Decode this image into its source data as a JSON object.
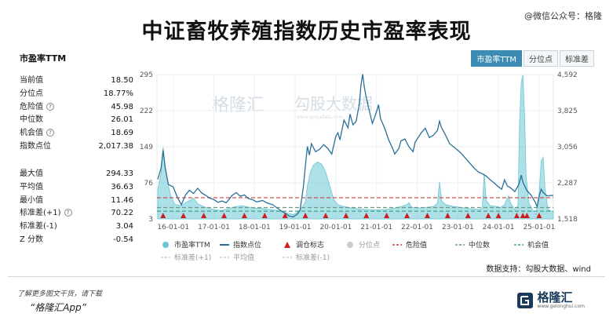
{
  "page": {
    "title": "中证畜牧养殖指数历史市盈率表现",
    "watermark_top": "@微信公众号：格隆",
    "chart_heading": "市盈率TTM",
    "tabs": [
      "市盈率TTM",
      "分位点",
      "标准差"
    ],
    "watermark_center": "勾股大数据",
    "watermark_center_sub": "www.gogudata.com",
    "watermark_brand": "格隆汇",
    "source_note": "数据支持：勾股大数据、wind",
    "footer_line1": "了解更多图文干货，请下载",
    "footer_line2": "“格隆汇App”",
    "footer_logo_text": "格隆汇",
    "footer_logo_sub": "www.gelonghui.com"
  },
  "stats_group1": [
    {
      "label": "当前值",
      "value": "18.50",
      "help": false
    },
    {
      "label": "分位点",
      "value": "18.77%",
      "help": false
    },
    {
      "label": "危险值",
      "value": "45.98",
      "help": true
    },
    {
      "label": "中位数",
      "value": "26.01",
      "help": false
    },
    {
      "label": "机会值",
      "value": "18.69",
      "help": true
    },
    {
      "label": "指数点位",
      "value": "2,017.38",
      "help": false
    }
  ],
  "stats_group2": [
    {
      "label": "最大值",
      "value": "294.33",
      "help": false
    },
    {
      "label": "平均值",
      "value": "36.63",
      "help": false
    },
    {
      "label": "最小值",
      "value": "11.46",
      "help": false
    },
    {
      "label": "标准差(+1)",
      "value": "70.22",
      "help": true
    },
    {
      "label": "标准差(-1)",
      "value": "3.04",
      "help": false
    },
    {
      "label": "Z 分数",
      "value": "-0.54",
      "help": false
    }
  ],
  "chart_data": {
    "type": "line",
    "x_ticks": [
      "16-01-01",
      "17-01-01",
      "18-01-01",
      "19-01-01",
      "20-01-01",
      "21-01-01",
      "22-01-01",
      "23-01-01",
      "24-01-01",
      "25-01-01"
    ],
    "x_range": [
      2015.6,
      2025.35
    ],
    "y_left": {
      "label": "市盈率TTM",
      "ticks": [
        "295",
        "222",
        "149",
        "76",
        "3"
      ],
      "range": [
        3,
        295
      ]
    },
    "y_right": {
      "label": "指数点位",
      "ticks": [
        "4,592",
        "3,825",
        "3,056",
        "2,287",
        "1,518"
      ],
      "range": [
        1518,
        4592
      ]
    },
    "reference_lines": [
      {
        "name": "危险值",
        "value": 45.98,
        "color": "#c94040"
      },
      {
        "name": "中位数",
        "value": 26.01,
        "color": "#6a9a84"
      },
      {
        "name": "机会值",
        "value": 18.69,
        "color": "#3aa58e"
      }
    ],
    "series": [
      {
        "name": "市盈率TTM",
        "kind": "area",
        "color": "#6cc6d6",
        "points": [
          [
            2015.62,
            62
          ],
          [
            2015.7,
            95
          ],
          [
            2015.75,
            148
          ],
          [
            2015.8,
            110
          ],
          [
            2015.88,
            70
          ],
          [
            2015.96,
            45
          ],
          [
            2016.05,
            32
          ],
          [
            2016.2,
            30
          ],
          [
            2016.35,
            38
          ],
          [
            2016.5,
            45
          ],
          [
            2016.6,
            34
          ],
          [
            2016.75,
            28
          ],
          [
            2016.9,
            24
          ],
          [
            2017.0,
            22
          ],
          [
            2017.2,
            20
          ],
          [
            2017.4,
            25
          ],
          [
            2017.55,
            28
          ],
          [
            2017.7,
            30
          ],
          [
            2017.85,
            27
          ],
          [
            2018.0,
            25
          ],
          [
            2018.2,
            24
          ],
          [
            2018.4,
            22
          ],
          [
            2018.55,
            20
          ],
          [
            2018.7,
            17
          ],
          [
            2018.85,
            14
          ],
          [
            2018.95,
            12
          ],
          [
            2019.05,
            16
          ],
          [
            2019.15,
            24
          ],
          [
            2019.25,
            38
          ],
          [
            2019.3,
            70
          ],
          [
            2019.38,
            100
          ],
          [
            2019.45,
            112
          ],
          [
            2019.55,
            118
          ],
          [
            2019.65,
            114
          ],
          [
            2019.75,
            98
          ],
          [
            2019.85,
            70
          ],
          [
            2019.95,
            42
          ],
          [
            2020.05,
            32
          ],
          [
            2020.2,
            28
          ],
          [
            2020.4,
            25
          ],
          [
            2020.6,
            23
          ],
          [
            2020.8,
            22
          ],
          [
            2021.0,
            21
          ],
          [
            2021.2,
            22
          ],
          [
            2021.4,
            24
          ],
          [
            2021.6,
            28
          ],
          [
            2021.75,
            32
          ],
          [
            2021.8,
            36
          ],
          [
            2021.85,
            28
          ],
          [
            2021.9,
            26
          ],
          [
            2022.0,
            25
          ],
          [
            2022.2,
            26
          ],
          [
            2022.4,
            28
          ],
          [
            2022.5,
            35
          ],
          [
            2022.55,
            78
          ],
          [
            2022.6,
            40
          ],
          [
            2022.7,
            32
          ],
          [
            2022.9,
            28
          ],
          [
            2023.1,
            26
          ],
          [
            2023.3,
            24
          ],
          [
            2023.5,
            22
          ],
          [
            2023.6,
            24
          ],
          [
            2023.65,
            95
          ],
          [
            2023.7,
            40
          ],
          [
            2023.8,
            30
          ],
          [
            2023.95,
            28
          ],
          [
            2024.05,
            26
          ],
          [
            2024.15,
            32
          ],
          [
            2024.2,
            42
          ],
          [
            2024.25,
            50
          ],
          [
            2024.3,
            35
          ],
          [
            2024.4,
            22
          ],
          [
            2024.48,
            30
          ],
          [
            2024.52,
            200
          ],
          [
            2024.56,
            280
          ],
          [
            2024.6,
            294
          ],
          [
            2024.64,
            220
          ],
          [
            2024.68,
            90
          ],
          [
            2024.75,
            35
          ],
          [
            2024.85,
            20
          ],
          [
            2024.92,
            12
          ],
          [
            2025.0,
            55
          ],
          [
            2025.05,
            120
          ],
          [
            2025.1,
            128
          ],
          [
            2025.15,
            60
          ],
          [
            2025.22,
            22
          ],
          [
            2025.3,
            19
          ],
          [
            2025.35,
            18.5
          ]
        ]
      },
      {
        "name": "指数点位",
        "kind": "line",
        "color": "#2a6f97",
        "points": [
          [
            2015.62,
            2360
          ],
          [
            2015.7,
            2600
          ],
          [
            2015.75,
            2980
          ],
          [
            2015.8,
            2620
          ],
          [
            2015.88,
            2250
          ],
          [
            2016.0,
            2200
          ],
          [
            2016.1,
            1980
          ],
          [
            2016.2,
            1820
          ],
          [
            2016.3,
            2030
          ],
          [
            2016.4,
            2130
          ],
          [
            2016.5,
            2060
          ],
          [
            2016.6,
            2170
          ],
          [
            2016.7,
            2070
          ],
          [
            2016.8,
            2020
          ],
          [
            2016.9,
            1960
          ],
          [
            2017.0,
            1930
          ],
          [
            2017.1,
            1870
          ],
          [
            2017.2,
            1900
          ],
          [
            2017.3,
            1860
          ],
          [
            2017.45,
            2020
          ],
          [
            2017.55,
            2080
          ],
          [
            2017.65,
            2000
          ],
          [
            2017.75,
            2030
          ],
          [
            2017.85,
            1950
          ],
          [
            2017.95,
            1930
          ],
          [
            2018.05,
            1880
          ],
          [
            2018.2,
            1910
          ],
          [
            2018.3,
            1860
          ],
          [
            2018.45,
            1820
          ],
          [
            2018.6,
            1720
          ],
          [
            2018.75,
            1640
          ],
          [
            2018.85,
            1580
          ],
          [
            2018.95,
            1560
          ],
          [
            2019.05,
            1620
          ],
          [
            2019.12,
            1700
          ],
          [
            2019.2,
            2200
          ],
          [
            2019.25,
            2650
          ],
          [
            2019.3,
            3060
          ],
          [
            2019.35,
            2880
          ],
          [
            2019.4,
            3120
          ],
          [
            2019.5,
            2950
          ],
          [
            2019.6,
            3000
          ],
          [
            2019.7,
            3100
          ],
          [
            2019.8,
            3020
          ],
          [
            2019.9,
            2900
          ],
          [
            2020.0,
            3280
          ],
          [
            2020.05,
            3350
          ],
          [
            2020.1,
            3200
          ],
          [
            2020.2,
            3620
          ],
          [
            2020.3,
            3460
          ],
          [
            2020.35,
            3750
          ],
          [
            2020.42,
            3520
          ],
          [
            2020.5,
            3600
          ],
          [
            2020.58,
            3980
          ],
          [
            2020.62,
            4380
          ],
          [
            2020.66,
            4600
          ],
          [
            2020.7,
            4320
          ],
          [
            2020.75,
            4100
          ],
          [
            2020.8,
            3900
          ],
          [
            2020.9,
            3550
          ],
          [
            2021.0,
            3800
          ],
          [
            2021.05,
            3950
          ],
          [
            2021.1,
            3650
          ],
          [
            2021.2,
            3450
          ],
          [
            2021.3,
            3200
          ],
          [
            2021.38,
            3050
          ],
          [
            2021.45,
            2900
          ],
          [
            2021.55,
            3020
          ],
          [
            2021.6,
            3180
          ],
          [
            2021.7,
            3220
          ],
          [
            2021.8,
            3050
          ],
          [
            2021.9,
            2950
          ],
          [
            2021.95,
            3150
          ],
          [
            2022.0,
            3220
          ],
          [
            2022.1,
            3350
          ],
          [
            2022.2,
            3450
          ],
          [
            2022.3,
            3250
          ],
          [
            2022.4,
            3300
          ],
          [
            2022.5,
            3400
          ],
          [
            2022.55,
            3600
          ],
          [
            2022.6,
            3460
          ],
          [
            2022.7,
            3300
          ],
          [
            2022.8,
            3120
          ],
          [
            2022.9,
            3050
          ],
          [
            2023.0,
            2980
          ],
          [
            2023.1,
            2900
          ],
          [
            2023.2,
            2800
          ],
          [
            2023.3,
            2700
          ],
          [
            2023.4,
            2600
          ],
          [
            2023.5,
            2520
          ],
          [
            2023.6,
            2480
          ],
          [
            2023.7,
            2430
          ],
          [
            2023.8,
            2350
          ],
          [
            2023.9,
            2280
          ],
          [
            2024.0,
            2200
          ],
          [
            2024.08,
            2150
          ],
          [
            2024.15,
            2350
          ],
          [
            2024.22,
            2220
          ],
          [
            2024.3,
            2180
          ],
          [
            2024.4,
            2100
          ],
          [
            2024.5,
            2250
          ],
          [
            2024.56,
            2450
          ],
          [
            2024.6,
            2300
          ],
          [
            2024.7,
            2120
          ],
          [
            2024.8,
            2030
          ],
          [
            2024.9,
            1880
          ],
          [
            2024.95,
            1780
          ],
          [
            2025.0,
            2000
          ],
          [
            2025.05,
            2150
          ],
          [
            2025.1,
            2080
          ],
          [
            2025.2,
            2010
          ],
          [
            2025.3,
            2020
          ],
          [
            2025.35,
            2017.38
          ]
        ]
      }
    ],
    "markers": {
      "name": "调仓标志",
      "color": "#cc1f1f",
      "x": [
        2015.75,
        2016.25,
        2016.75,
        2017.25,
        2017.75,
        2018.25,
        2018.75,
        2019.25,
        2019.75,
        2020.25,
        2020.75,
        2021.25,
        2021.75,
        2022.25,
        2022.75,
        2023.25,
        2023.75,
        2024.0,
        2024.45,
        2024.6,
        2024.7,
        2025.0
      ]
    },
    "legend": [
      {
        "name": "市盈率TTM",
        "kind": "dot",
        "color": "#6cc6d6"
      },
      {
        "name": "指数点位",
        "kind": "line",
        "color": "#2a6f97"
      },
      {
        "name": "调仓标志",
        "kind": "triangle",
        "color": "#cc1f1f"
      },
      {
        "name": "分位点",
        "kind": "dot",
        "color": "#c9cbd0"
      },
      {
        "name": "危险值",
        "kind": "dash",
        "color": "#c94040"
      },
      {
        "name": "中位数",
        "kind": "dash",
        "color": "#6a9a84"
      },
      {
        "name": "机会值",
        "kind": "dash",
        "color": "#3aa58e"
      },
      {
        "name": "标准差(+1)",
        "kind": "dash",
        "color": "#c7cbd0"
      },
      {
        "name": "平均值",
        "kind": "dash",
        "color": "#c7cbd0"
      },
      {
        "name": "标准差(-1)",
        "kind": "dash",
        "color": "#c7cbd0"
      }
    ],
    "grid": true,
    "legend_position": "bottom"
  }
}
